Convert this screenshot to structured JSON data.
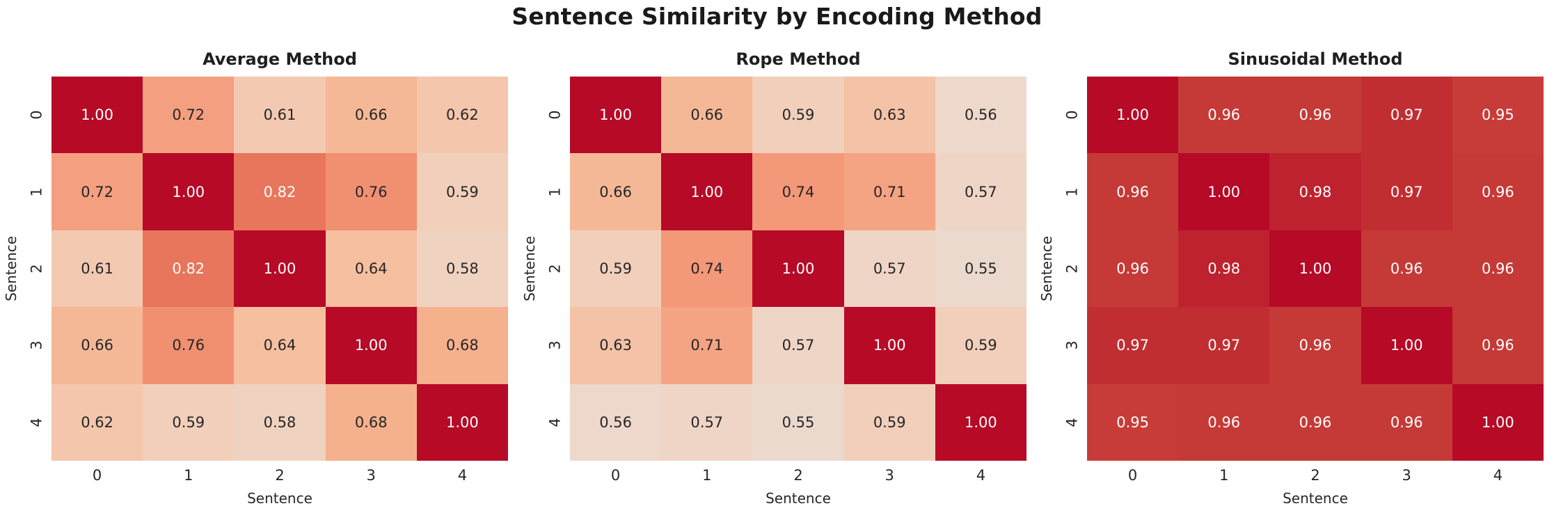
{
  "figure": {
    "title": "Sentence Similarity by Encoding Method"
  },
  "chart_data": [
    {
      "type": "heatmap",
      "title": "Average Method",
      "xlabel": "Sentence",
      "ylabel": "Sentence",
      "x_ticks": [
        "0",
        "1",
        "2",
        "3",
        "4"
      ],
      "y_ticks": [
        "0",
        "1",
        "2",
        "3",
        "4"
      ],
      "vmin": 0.0,
      "vmax": 1.0,
      "annotation_format": "0.2f",
      "values": [
        [
          1.0,
          0.72,
          0.61,
          0.66,
          0.62
        ],
        [
          0.72,
          1.0,
          0.82,
          0.76,
          0.59
        ],
        [
          0.61,
          0.82,
          1.0,
          0.64,
          0.58
        ],
        [
          0.66,
          0.76,
          0.64,
          1.0,
          0.68
        ],
        [
          0.62,
          0.59,
          0.58,
          0.68,
          1.0
        ]
      ]
    },
    {
      "type": "heatmap",
      "title": "Rope Method",
      "xlabel": "Sentence",
      "ylabel": "Sentence",
      "x_ticks": [
        "0",
        "1",
        "2",
        "3",
        "4"
      ],
      "y_ticks": [
        "0",
        "1",
        "2",
        "3",
        "4"
      ],
      "vmin": 0.0,
      "vmax": 1.0,
      "annotation_format": "0.2f",
      "values": [
        [
          1.0,
          0.66,
          0.59,
          0.63,
          0.56
        ],
        [
          0.66,
          1.0,
          0.74,
          0.71,
          0.57
        ],
        [
          0.59,
          0.74,
          1.0,
          0.57,
          0.55
        ],
        [
          0.63,
          0.71,
          0.57,
          1.0,
          0.59
        ],
        [
          0.56,
          0.57,
          0.55,
          0.59,
          1.0
        ]
      ]
    },
    {
      "type": "heatmap",
      "title": "Sinusoidal Method",
      "xlabel": "Sentence",
      "ylabel": "Sentence",
      "x_ticks": [
        "0",
        "1",
        "2",
        "3",
        "4"
      ],
      "y_ticks": [
        "0",
        "1",
        "2",
        "3",
        "4"
      ],
      "vmin": 0.0,
      "vmax": 1.0,
      "annotation_format": "0.2f",
      "values": [
        [
          1.0,
          0.96,
          0.96,
          0.97,
          0.95
        ],
        [
          0.96,
          1.0,
          0.98,
          0.97,
          0.96
        ],
        [
          0.96,
          0.98,
          1.0,
          0.96,
          0.96
        ],
        [
          0.97,
          0.97,
          0.96,
          1.0,
          0.96
        ],
        [
          0.95,
          0.96,
          0.96,
          0.96,
          1.0
        ]
      ]
    }
  ],
  "style": {
    "background": "#ffffff",
    "title_color": "#1a1a1a",
    "label_color": "#262626",
    "annotation_dark": "#262626",
    "annotation_light": "#ffffff",
    "colormap_name": "coolwarm",
    "colormap_stops": [
      {
        "t": 0.0,
        "color": "#3b4cc0"
      },
      {
        "t": 0.25,
        "color": "#8caffe"
      },
      {
        "t": 0.5,
        "color": "#dddddd"
      },
      {
        "t": 0.56,
        "color": "#eed8cb"
      },
      {
        "t": 0.6,
        "color": "#f2ccb6"
      },
      {
        "t": 0.64,
        "color": "#f5bfa0"
      },
      {
        "t": 0.68,
        "color": "#f5b08c"
      },
      {
        "t": 0.72,
        "color": "#f4a080"
      },
      {
        "t": 0.76,
        "color": "#f19071"
      },
      {
        "t": 0.82,
        "color": "#e8765c"
      },
      {
        "t": 0.88,
        "color": "#d85646"
      },
      {
        "t": 0.92,
        "color": "#cd433c"
      },
      {
        "t": 0.96,
        "color": "#c53a36"
      },
      {
        "t": 1.0,
        "color": "#b60a27"
      }
    ]
  }
}
